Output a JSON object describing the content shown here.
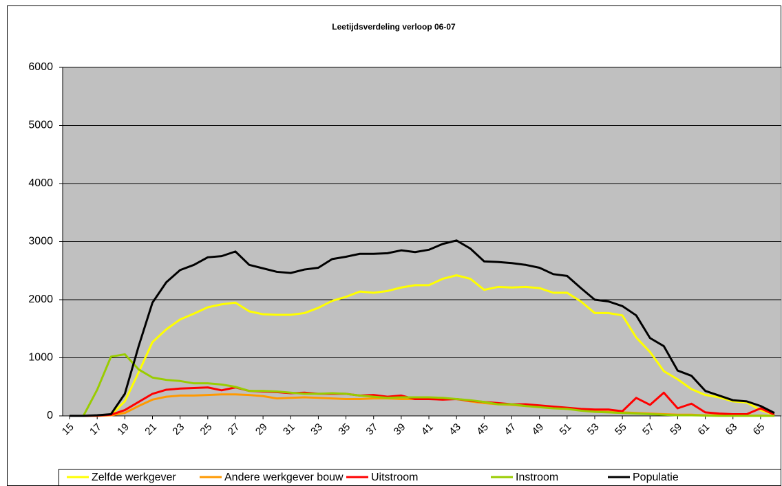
{
  "chart_data": {
    "type": "line",
    "title": "Leetijdsverdeling verloop 06-07",
    "x": [
      15,
      16,
      17,
      18,
      19,
      20,
      21,
      22,
      23,
      24,
      25,
      26,
      27,
      28,
      29,
      30,
      31,
      32,
      33,
      34,
      35,
      36,
      37,
      38,
      39,
      40,
      41,
      42,
      43,
      44,
      45,
      46,
      47,
      48,
      49,
      50,
      51,
      52,
      53,
      54,
      55,
      56,
      57,
      58,
      59,
      60,
      61,
      62,
      63,
      64,
      65,
      66
    ],
    "xlim": [
      14.5,
      66.5
    ],
    "xticks": [
      15,
      17,
      19,
      21,
      23,
      25,
      27,
      29,
      31,
      33,
      35,
      37,
      39,
      41,
      43,
      45,
      47,
      49,
      51,
      53,
      55,
      57,
      59,
      61,
      63,
      65
    ],
    "ylim": [
      0,
      6000
    ],
    "yticks": [
      0,
      1000,
      2000,
      3000,
      4000,
      5000,
      6000
    ],
    "grid": true,
    "legend": "bottom",
    "series": [
      {
        "name": "Zelfde werkgever",
        "color": "#ffff00",
        "values": [
          0,
          0,
          5,
          20,
          250,
          750,
          1270,
          1490,
          1660,
          1760,
          1870,
          1920,
          1950,
          1800,
          1750,
          1740,
          1740,
          1770,
          1860,
          1980,
          2050,
          2140,
          2120,
          2150,
          2210,
          2250,
          2250,
          2360,
          2420,
          2360,
          2170,
          2220,
          2210,
          2220,
          2200,
          2120,
          2120,
          1970,
          1770,
          1770,
          1730,
          1350,
          1100,
          770,
          630,
          460,
          360,
          320,
          250,
          230,
          100,
          20
        ]
      },
      {
        "name": "Andere werkgever bouw",
        "color": "#ff9900",
        "values": [
          0,
          0,
          0,
          10,
          50,
          170,
          280,
          330,
          350,
          350,
          360,
          370,
          370,
          360,
          340,
          300,
          310,
          320,
          310,
          300,
          290,
          290,
          300,
          300,
          290,
          290,
          290,
          290,
          290,
          250,
          220,
          200,
          190,
          170,
          160,
          140,
          120,
          100,
          80,
          70,
          60,
          50,
          40,
          30,
          20,
          20,
          10,
          10,
          10,
          5,
          5,
          0
        ]
      },
      {
        "name": "Uitstroom",
        "color": "#ff0000",
        "values": [
          0,
          0,
          5,
          20,
          100,
          240,
          380,
          450,
          470,
          480,
          490,
          440,
          490,
          430,
          420,
          410,
          390,
          400,
          380,
          380,
          380,
          350,
          360,
          330,
          350,
          290,
          290,
          280,
          290,
          260,
          240,
          220,
          200,
          200,
          180,
          160,
          140,
          120,
          110,
          110,
          80,
          310,
          190,
          400,
          130,
          210,
          60,
          40,
          30,
          30,
          130,
          20
        ]
      },
      {
        "name": "Instroom",
        "color": "#99cc00",
        "values": [
          0,
          0,
          450,
          1020,
          1060,
          800,
          660,
          620,
          600,
          560,
          560,
          540,
          500,
          430,
          430,
          420,
          400,
          380,
          380,
          390,
          380,
          350,
          330,
          310,
          320,
          320,
          320,
          310,
          290,
          270,
          240,
          200,
          200,
          170,
          150,
          130,
          120,
          90,
          70,
          60,
          50,
          40,
          30,
          20,
          10,
          10,
          5,
          0,
          0,
          0,
          0,
          0
        ]
      },
      {
        "name": "Populatie",
        "color": "#000000",
        "values": [
          0,
          0,
          10,
          30,
          380,
          1200,
          1950,
          2300,
          2510,
          2600,
          2730,
          2750,
          2830,
          2600,
          2540,
          2480,
          2460,
          2520,
          2550,
          2700,
          2740,
          2790,
          2790,
          2800,
          2850,
          2820,
          2860,
          2960,
          3020,
          2880,
          2660,
          2650,
          2630,
          2600,
          2550,
          2440,
          2410,
          2200,
          2000,
          1970,
          1890,
          1730,
          1340,
          1200,
          780,
          690,
          430,
          350,
          270,
          250,
          170,
          50
        ]
      }
    ]
  }
}
